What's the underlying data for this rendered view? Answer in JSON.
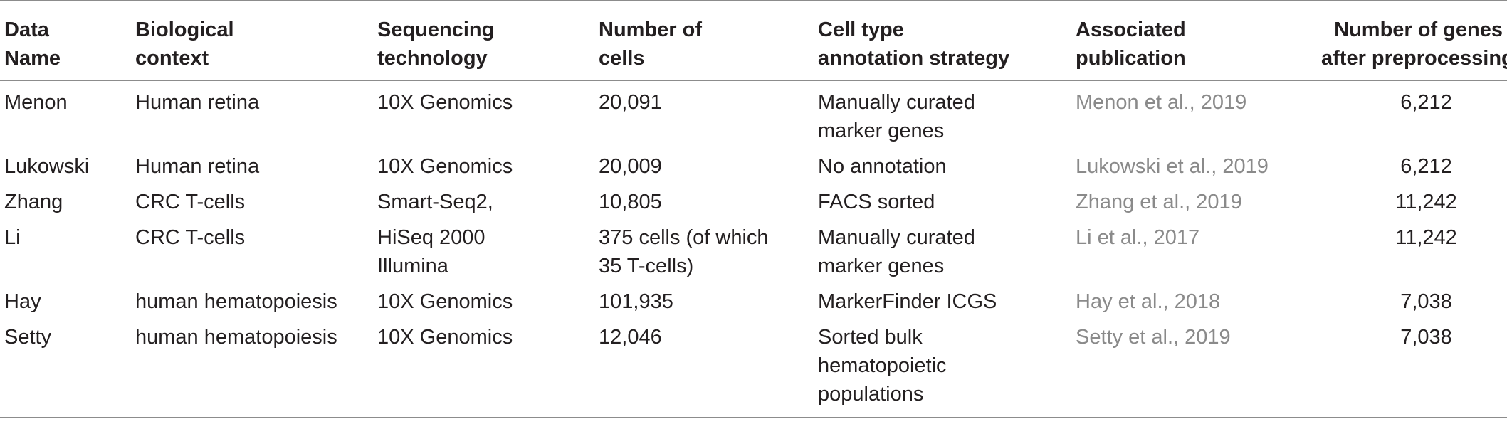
{
  "header": {
    "col1": [
      "Data",
      "Name"
    ],
    "col2": [
      "Biological",
      "context"
    ],
    "col3": [
      "Sequencing",
      "technology"
    ],
    "col4": [
      "Number of",
      "cells"
    ],
    "col5": [
      "Cell type",
      "annotation strategy"
    ],
    "col6": [
      "Associated",
      "publication"
    ],
    "col7": [
      "Number of genes",
      "after preprocessing"
    ]
  },
  "rows": [
    {
      "name": "Menon",
      "context": "Human retina",
      "tech": [
        "10X Genomics"
      ],
      "cells": [
        "20,091"
      ],
      "annotation": [
        "Manually curated",
        "marker genes"
      ],
      "publication": "Menon et al., 2019",
      "genes": "6,212"
    },
    {
      "name": "Lukowski",
      "context": "Human retina",
      "tech": [
        "10X Genomics"
      ],
      "cells": [
        "20,009"
      ],
      "annotation": [
        "No annotation"
      ],
      "publication": "Lukowski et al., 2019",
      "genes": "6,212"
    },
    {
      "name": "Zhang",
      "context": "CRC T-cells",
      "tech": [
        "Smart-Seq2,"
      ],
      "cells": [
        "10,805"
      ],
      "annotation": [
        "FACS sorted"
      ],
      "publication": "Zhang et al., 2019",
      "genes": "11,242"
    },
    {
      "name": "Li",
      "context": "CRC T-cells",
      "tech": [
        "HiSeq 2000",
        "Illumina"
      ],
      "cells": [
        "375 cells (of which",
        "35 T-cells)"
      ],
      "annotation": [
        "Manually curated",
        "marker genes"
      ],
      "publication": "Li et al., 2017",
      "genes": "11,242"
    },
    {
      "name": "Hay",
      "context": "human hematopoiesis",
      "tech": [
        "10X Genomics"
      ],
      "cells": [
        "101,935"
      ],
      "annotation": [
        "MarkerFinder ICGS"
      ],
      "publication": "Hay et al., 2018",
      "genes": "7,038"
    },
    {
      "name": "Setty",
      "context": "human hematopoiesis",
      "tech": [
        "10X Genomics"
      ],
      "cells": [
        "12,046"
      ],
      "annotation": [
        "Sorted bulk",
        "hematopoietic",
        "populations"
      ],
      "publication": "Setty et al., 2019",
      "genes": "7,038"
    }
  ]
}
